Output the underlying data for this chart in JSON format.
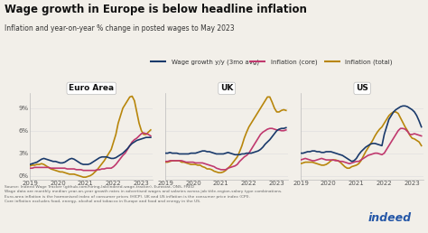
{
  "title": "Wage growth in Europe is below headline inflation",
  "subtitle": "Inflation and year-on-year % change in posted wages to May 2023",
  "source_text": "Source: Indeed Wage Tracker (github.com/hiring-lab/indeed-wage-tracker), Eurostat, ONS, FRED\nWage data are monthly median year-on-year growth rates in advertised wages and salaries across job title-region-salary type combinations.\nEuro-area inflation is the harmonised index of consumer prices (HICP). UK and US inflation is the consumer price index (CPI).\nCore inflation excludes food, energy, alcohol and tobacco in Europe and food and energy in the US.",
  "panels": [
    "Euro Area",
    "UK",
    "US"
  ],
  "colors": {
    "wage": "#1a3a6b",
    "core": "#c0396e",
    "total": "#b8860b"
  },
  "yticks": [
    0,
    3,
    6,
    9
  ],
  "ylim": [
    -0.5,
    11
  ],
  "euro_wage": [
    1.5,
    1.6,
    1.7,
    1.8,
    2.0,
    2.2,
    2.3,
    2.2,
    2.1,
    2.0,
    1.9,
    1.9,
    1.8,
    1.7,
    1.7,
    1.8,
    2.0,
    2.2,
    2.3,
    2.2,
    2.0,
    1.8,
    1.6,
    1.5,
    1.5,
    1.5,
    1.6,
    1.8,
    2.0,
    2.2,
    2.4,
    2.5,
    2.5,
    2.5,
    2.4,
    2.3,
    2.3,
    2.4,
    2.6,
    2.8,
    3.0,
    3.3,
    3.6,
    4.0,
    4.3,
    4.5,
    4.7,
    4.8,
    4.9,
    5.0,
    5.1,
    5.1,
    5.1
  ],
  "euro_core": [
    1.0,
    1.0,
    1.1,
    1.1,
    1.1,
    1.1,
    1.1,
    1.1,
    1.1,
    1.0,
    1.0,
    1.0,
    1.0,
    1.0,
    1.0,
    1.0,
    0.9,
    0.9,
    0.9,
    0.9,
    0.8,
    0.8,
    0.8,
    0.7,
    0.7,
    0.7,
    0.7,
    0.7,
    0.7,
    0.8,
    0.8,
    0.9,
    0.9,
    1.0,
    1.0,
    1.0,
    1.2,
    1.5,
    1.9,
    2.3,
    2.7,
    3.0,
    3.5,
    4.0,
    4.5,
    4.8,
    5.0,
    5.3,
    5.6,
    5.7,
    5.6,
    5.5,
    5.3
  ],
  "euro_total": [
    1.3,
    1.4,
    1.4,
    1.5,
    1.5,
    1.6,
    1.5,
    1.3,
    1.1,
    0.9,
    0.8,
    0.7,
    0.6,
    0.5,
    0.5,
    0.4,
    0.3,
    0.2,
    0.2,
    0.2,
    0.1,
    0.0,
    -0.1,
    -0.2,
    -0.2,
    -0.1,
    0.0,
    0.2,
    0.5,
    0.8,
    1.2,
    1.6,
    2.0,
    2.5,
    3.0,
    3.5,
    4.5,
    5.5,
    7.0,
    8.0,
    9.0,
    9.5,
    10.0,
    10.5,
    10.6,
    10.0,
    8.5,
    7.0,
    6.0,
    5.5,
    5.5,
    5.8,
    6.1
  ],
  "uk_wage": [
    3.0,
    3.0,
    3.1,
    3.0,
    3.0,
    3.0,
    2.9,
    2.9,
    2.9,
    2.9,
    2.9,
    3.0,
    3.0,
    3.0,
    3.1,
    3.2,
    3.3,
    3.3,
    3.2,
    3.2,
    3.1,
    3.0,
    2.9,
    2.9,
    2.9,
    2.9,
    3.0,
    3.1,
    3.0,
    2.9,
    2.8,
    2.8,
    2.8,
    2.9,
    2.9,
    3.0,
    3.0,
    3.0,
    3.1,
    3.2,
    3.3,
    3.5,
    3.8,
    4.2,
    4.5,
    4.8,
    5.2,
    5.6,
    6.0,
    6.2,
    6.3,
    6.3,
    6.4
  ],
  "uk_core": [
    1.9,
    1.9,
    2.0,
    2.0,
    2.0,
    2.0,
    2.0,
    2.0,
    1.9,
    1.8,
    1.8,
    1.8,
    1.8,
    1.7,
    1.7,
    1.7,
    1.7,
    1.6,
    1.5,
    1.4,
    1.3,
    1.2,
    1.0,
    0.9,
    0.8,
    0.8,
    0.8,
    1.0,
    1.1,
    1.2,
    1.3,
    1.5,
    1.9,
    2.2,
    2.5,
    2.7,
    3.0,
    3.5,
    4.0,
    4.5,
    5.0,
    5.5,
    5.8,
    6.0,
    6.2,
    6.3,
    6.3,
    6.2,
    6.1,
    6.1,
    6.0,
    6.0,
    6.1
  ],
  "uk_total": [
    1.8,
    1.8,
    1.9,
    2.0,
    2.0,
    2.0,
    2.0,
    1.8,
    1.8,
    1.7,
    1.6,
    1.5,
    1.5,
    1.5,
    1.4,
    1.4,
    1.2,
    1.1,
    0.9,
    0.9,
    0.8,
    0.6,
    0.5,
    0.4,
    0.4,
    0.5,
    0.7,
    1.0,
    1.3,
    1.7,
    2.1,
    2.5,
    3.2,
    4.0,
    5.0,
    5.8,
    6.5,
    7.0,
    7.5,
    8.0,
    8.5,
    9.0,
    9.5,
    10.0,
    10.5,
    10.5,
    9.8,
    9.0,
    8.5,
    8.5,
    8.7,
    8.8,
    8.7
  ],
  "us_wage": [
    3.0,
    3.0,
    3.1,
    3.2,
    3.2,
    3.3,
    3.3,
    3.2,
    3.2,
    3.1,
    3.1,
    3.2,
    3.2,
    3.2,
    3.1,
    3.0,
    2.9,
    2.8,
    2.7,
    2.5,
    2.3,
    2.1,
    1.9,
    2.0,
    2.3,
    2.8,
    3.2,
    3.5,
    3.8,
    4.0,
    4.2,
    4.3,
    4.3,
    4.2,
    4.1,
    4.0,
    5.5,
    6.5,
    7.5,
    8.0,
    8.5,
    8.8,
    9.0,
    9.2,
    9.3,
    9.3,
    9.2,
    9.0,
    8.8,
    8.5,
    8.0,
    7.3,
    6.5
  ],
  "us_core": [
    2.1,
    2.2,
    2.3,
    2.2,
    2.1,
    2.0,
    2.0,
    2.1,
    2.2,
    2.3,
    2.2,
    2.1,
    2.1,
    2.1,
    2.1,
    2.0,
    2.0,
    1.9,
    1.9,
    1.8,
    1.7,
    1.6,
    1.7,
    1.8,
    1.9,
    1.9,
    2.1,
    2.3,
    2.5,
    2.7,
    2.8,
    2.9,
    3.0,
    3.0,
    2.9,
    2.8,
    3.0,
    3.5,
    4.0,
    4.5,
    5.0,
    5.5,
    6.0,
    6.3,
    6.3,
    6.2,
    5.9,
    5.5,
    5.5,
    5.6,
    5.5,
    5.4,
    5.3
  ],
  "us_total": [
    1.6,
    1.7,
    1.8,
    1.8,
    1.8,
    1.8,
    1.7,
    1.6,
    1.5,
    1.4,
    1.4,
    1.5,
    1.7,
    2.0,
    2.1,
    2.1,
    2.0,
    1.8,
    1.5,
    1.2,
    1.0,
    1.0,
    1.2,
    1.3,
    1.4,
    1.6,
    2.0,
    2.6,
    3.2,
    3.7,
    4.2,
    4.7,
    5.3,
    5.8,
    6.2,
    6.5,
    7.0,
    7.5,
    8.0,
    8.3,
    8.5,
    8.5,
    8.3,
    7.7,
    7.1,
    6.5,
    6.0,
    5.4,
    5.0,
    4.9,
    4.7,
    4.5,
    4.0
  ],
  "background_color": "#f2efe9",
  "line_width": 1.2,
  "legend_items": [
    "Wage growth y/y (3mo avg)",
    "Inflation (core)",
    "Inflation (total)"
  ]
}
